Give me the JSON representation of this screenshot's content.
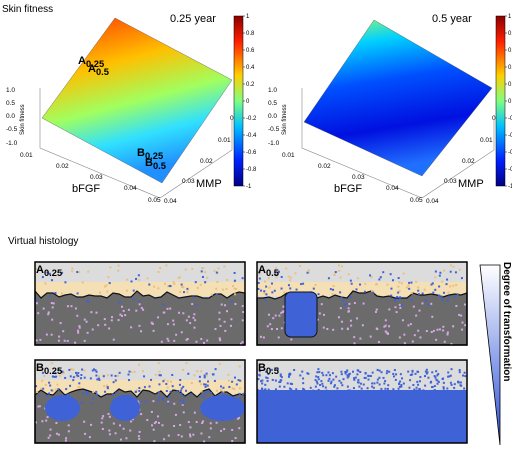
{
  "sections": {
    "skin_fitness": "Skin fitness",
    "virtual_histology": "Virtual histology"
  },
  "surface_plots": [
    {
      "time_label": "0.25 year",
      "z_label": "Skin fitness",
      "z_ticks": [
        "1.0",
        "0.5",
        "0.0",
        "-0.5",
        "-1.0"
      ],
      "x_label": "bFGF",
      "x_ticks": [
        "0.01",
        "0.02",
        "0.03",
        "0.04",
        "0.05"
      ],
      "y_label": "MMP",
      "y_ticks": [
        "0",
        "0.01",
        "0.02",
        "0.03",
        "0.04"
      ],
      "point_a": {
        "letter": "A",
        "sub": "0.25"
      },
      "point_b": {
        "letter": "B",
        "sub": "0.25"
      },
      "colorbar_ticks": [
        "1",
        "0.8",
        "0.6",
        "0.4",
        "0.2",
        "0",
        "-0.2",
        "-0.4",
        "-0.6",
        "-0.8",
        "-1"
      ]
    },
    {
      "time_label": "0.5 year",
      "z_label": "Skin fitness",
      "z_ticks": [
        "1.0",
        "0.5",
        "0.0",
        "-0.5",
        "-1.0"
      ],
      "x_label": "bFGF",
      "x_ticks": [
        "0.01",
        "0.02",
        "0.03",
        "0.04",
        "0.05"
      ],
      "y_label": "MMP",
      "y_ticks": [
        "0",
        "0.01",
        "0.02",
        "0.03",
        "0.04"
      ],
      "point_a": {
        "letter": "A",
        "sub": "0.5"
      },
      "point_b": {
        "letter": "B",
        "sub": "0.5"
      },
      "colorbar_ticks": [
        "1",
        "0.8",
        "0.6",
        "0.4",
        "0.2",
        "0",
        "-0.2",
        "-0.4",
        "-0.6",
        "-0.8",
        "-1"
      ]
    }
  ],
  "histology": {
    "panels": [
      {
        "letter": "A",
        "sub": "0.25"
      },
      {
        "letter": "A",
        "sub": "0.5"
      },
      {
        "letter": "B",
        "sub": "0.25"
      },
      {
        "letter": "B",
        "sub": "0.5"
      }
    ],
    "gradient_label": "Degree of transformation"
  }
}
